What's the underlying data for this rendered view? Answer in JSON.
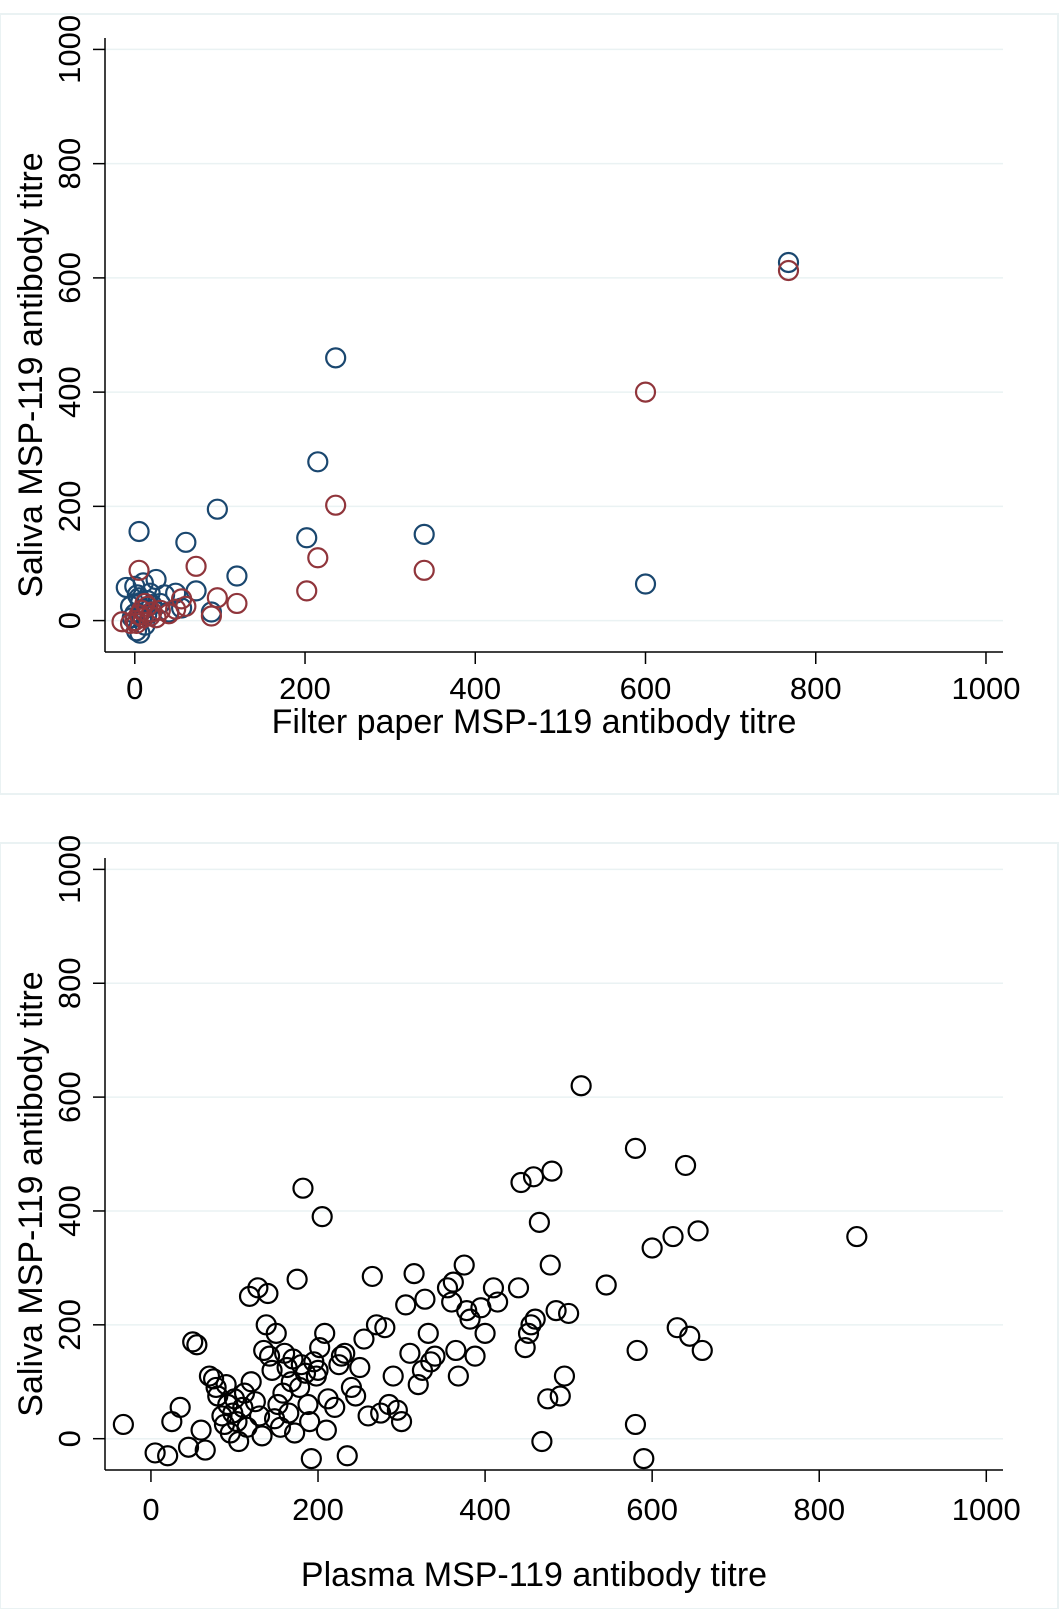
{
  "chart_data": [
    {
      "type": "scatter",
      "xlabel": "Filter paper MSP-119 antibody titre",
      "ylabel": "Saliva MSP-119 antibody titre",
      "xlim": [
        -35,
        1020
      ],
      "ylim": [
        -55,
        1020
      ],
      "xticks": [
        0,
        200,
        400,
        600,
        800,
        1000
      ],
      "yticks": [
        0,
        200,
        400,
        600,
        800,
        1000
      ],
      "grid": "horizontal",
      "legend": "none",
      "series": [
        {
          "color": "#1a476f",
          "points": [
            [
              768,
              627
            ],
            [
              236,
              460
            ],
            [
              215,
              278
            ],
            [
              97,
              195
            ],
            [
              5,
              156
            ],
            [
              202,
              145
            ],
            [
              340,
              151
            ],
            [
              600,
              64
            ],
            [
              60,
              137
            ],
            [
              120,
              78
            ],
            [
              25,
              72
            ],
            [
              10,
              66
            ],
            [
              -10,
              58
            ],
            [
              0,
              60
            ],
            [
              48,
              48
            ],
            [
              72,
              52
            ],
            [
              35,
              45
            ],
            [
              90,
              15
            ],
            [
              5,
              40
            ],
            [
              15,
              35
            ],
            [
              20,
              28
            ],
            [
              10,
              20
            ],
            [
              0,
              12
            ],
            [
              8,
              5
            ],
            [
              12,
              -8
            ],
            [
              -5,
              25
            ],
            [
              2,
              -18
            ],
            [
              6,
              -22
            ],
            [
              14,
              10
            ],
            [
              30,
              30
            ],
            [
              40,
              15
            ],
            [
              55,
              22
            ],
            [
              3,
              45
            ],
            [
              18,
              48
            ],
            [
              -3,
              5
            ],
            [
              7,
              32
            ]
          ]
        },
        {
          "color": "#90353b",
          "points": [
            [
              768,
              613
            ],
            [
              600,
              400
            ],
            [
              236,
              202
            ],
            [
              215,
              110
            ],
            [
              340,
              88
            ],
            [
              202,
              52
            ],
            [
              5,
              88
            ],
            [
              72,
              95
            ],
            [
              97,
              40
            ],
            [
              120,
              30
            ],
            [
              48,
              20
            ],
            [
              55,
              38
            ],
            [
              90,
              8
            ],
            [
              30,
              18
            ],
            [
              10,
              5
            ],
            [
              -15,
              -2
            ],
            [
              0,
              0
            ],
            [
              20,
              15
            ],
            [
              15,
              25
            ],
            [
              5,
              10
            ],
            [
              25,
              5
            ],
            [
              -5,
              -5
            ],
            [
              12,
              30
            ],
            [
              40,
              12
            ],
            [
              60,
              25
            ],
            [
              8,
              18
            ],
            [
              2,
              -5
            ],
            [
              18,
              8
            ]
          ]
        }
      ]
    },
    {
      "type": "scatter",
      "xlabel": "Plasma MSP-119 antibody titre",
      "ylabel": "Saliva MSP-119 antibody titre",
      "xlim": [
        -55,
        1020
      ],
      "ylim": [
        -55,
        1020
      ],
      "xticks": [
        0,
        200,
        400,
        600,
        800,
        1000
      ],
      "yticks": [
        0,
        200,
        400,
        600,
        800,
        1000
      ],
      "grid": "horizontal",
      "legend": "none",
      "series": [
        {
          "color": "#000000",
          "points": [
            [
              -33,
              25
            ],
            [
              5,
              -25
            ],
            [
              20,
              -30
            ],
            [
              25,
              30
            ],
            [
              35,
              55
            ],
            [
              45,
              -15
            ],
            [
              50,
              170
            ],
            [
              55,
              165
            ],
            [
              60,
              15
            ],
            [
              65,
              -20
            ],
            [
              70,
              110
            ],
            [
              75,
              105
            ],
            [
              78,
              90
            ],
            [
              80,
              75
            ],
            [
              85,
              40
            ],
            [
              88,
              25
            ],
            [
              90,
              95
            ],
            [
              92,
              60
            ],
            [
              95,
              10
            ],
            [
              98,
              45
            ],
            [
              100,
              70
            ],
            [
              103,
              30
            ],
            [
              105,
              -5
            ],
            [
              110,
              55
            ],
            [
              112,
              80
            ],
            [
              115,
              20
            ],
            [
              118,
              250
            ],
            [
              120,
              100
            ],
            [
              125,
              65
            ],
            [
              128,
              265
            ],
            [
              130,
              40
            ],
            [
              133,
              5
            ],
            [
              135,
              155
            ],
            [
              138,
              200
            ],
            [
              140,
              255
            ],
            [
              142,
              145
            ],
            [
              145,
              120
            ],
            [
              148,
              35
            ],
            [
              150,
              185
            ],
            [
              152,
              60
            ],
            [
              155,
              20
            ],
            [
              158,
              80
            ],
            [
              160,
              150
            ],
            [
              163,
              125
            ],
            [
              165,
              45
            ],
            [
              168,
              100
            ],
            [
              170,
              140
            ],
            [
              172,
              10
            ],
            [
              175,
              280
            ],
            [
              178,
              90
            ],
            [
              180,
              130
            ],
            [
              182,
              440
            ],
            [
              185,
              115
            ],
            [
              188,
              60
            ],
            [
              190,
              30
            ],
            [
              192,
              -35
            ],
            [
              195,
              135
            ],
            [
              198,
              110
            ],
            [
              200,
              120
            ],
            [
              202,
              160
            ],
            [
              205,
              390
            ],
            [
              208,
              185
            ],
            [
              210,
              15
            ],
            [
              212,
              70
            ],
            [
              220,
              55
            ],
            [
              225,
              130
            ],
            [
              228,
              145
            ],
            [
              232,
              150
            ],
            [
              235,
              -30
            ],
            [
              240,
              90
            ],
            [
              245,
              75
            ],
            [
              250,
              125
            ],
            [
              255,
              175
            ],
            [
              260,
              40
            ],
            [
              265,
              285
            ],
            [
              270,
              200
            ],
            [
              275,
              45
            ],
            [
              280,
              195
            ],
            [
              285,
              60
            ],
            [
              290,
              110
            ],
            [
              295,
              50
            ],
            [
              300,
              30
            ],
            [
              305,
              235
            ],
            [
              310,
              150
            ],
            [
              315,
              290
            ],
            [
              320,
              95
            ],
            [
              325,
              120
            ],
            [
              328,
              245
            ],
            [
              332,
              185
            ],
            [
              335,
              135
            ],
            [
              340,
              145
            ],
            [
              355,
              265
            ],
            [
              360,
              240
            ],
            [
              362,
              275
            ],
            [
              365,
              155
            ],
            [
              368,
              110
            ],
            [
              375,
              305
            ],
            [
              378,
              225
            ],
            [
              382,
              210
            ],
            [
              388,
              145
            ],
            [
              395,
              230
            ],
            [
              400,
              185
            ],
            [
              410,
              265
            ],
            [
              415,
              240
            ],
            [
              440,
              265
            ],
            [
              443,
              450
            ],
            [
              448,
              160
            ],
            [
              452,
              185
            ],
            [
              455,
              200
            ],
            [
              458,
              460
            ],
            [
              460,
              210
            ],
            [
              465,
              380
            ],
            [
              468,
              -5
            ],
            [
              475,
              70
            ],
            [
              478,
              305
            ],
            [
              480,
              470
            ],
            [
              485,
              225
            ],
            [
              490,
              75
            ],
            [
              495,
              110
            ],
            [
              500,
              220
            ],
            [
              515,
              620
            ],
            [
              545,
              270
            ],
            [
              580,
              510
            ],
            [
              582,
              155
            ],
            [
              580,
              25
            ],
            [
              590,
              -35
            ],
            [
              600,
              335
            ],
            [
              625,
              355
            ],
            [
              630,
              195
            ],
            [
              640,
              480
            ],
            [
              645,
              180
            ],
            [
              655,
              365
            ],
            [
              660,
              155
            ],
            [
              845,
              355
            ]
          ]
        }
      ]
    }
  ]
}
